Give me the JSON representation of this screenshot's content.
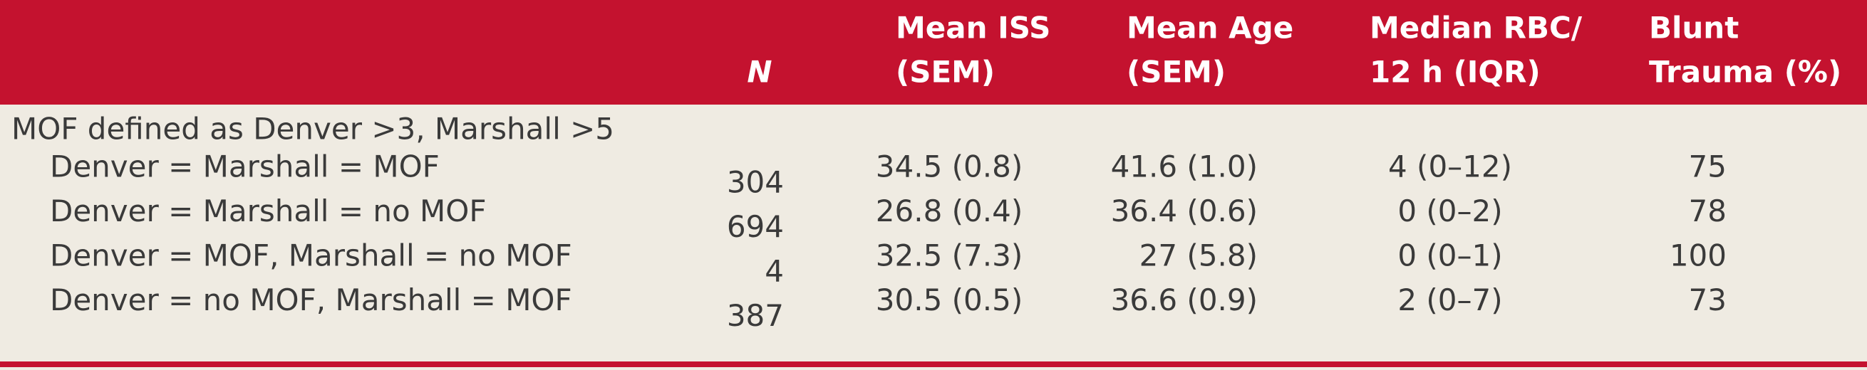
{
  "table": {
    "columns": [
      {
        "lines": [
          "N"
        ]
      },
      {
        "lines": [
          "Mean ISS",
          "(SEM)"
        ]
      },
      {
        "lines": [
          "Mean Age",
          "(SEM)"
        ]
      },
      {
        "lines": [
          "Median RBC/",
          "12 h (IQR)"
        ]
      },
      {
        "lines": [
          "Blunt",
          "Trauma (%)"
        ]
      }
    ],
    "section": "MOF defined as Denver >3, Marshall >5",
    "rows": [
      {
        "label": "Denver = Marshall = MOF",
        "cells": [
          304,
          "34.5 (0.8)",
          "41.6 (1.0)",
          "4 (0–12)",
          75
        ]
      },
      {
        "label": "Denver = Marshall = no MOF",
        "cells": [
          694,
          "26.8 (0.4)",
          "36.4 (0.6)",
          "0 (0–2)",
          78
        ]
      },
      {
        "label": "Denver = MOF, Marshall = no MOF",
        "cells": [
          4,
          "32.5 (7.3)",
          "27 (5.8)",
          "0 (0–1)",
          100
        ]
      },
      {
        "label": "Denver = no MOF, Marshall = MOF",
        "cells": [
          387,
          "30.5 (0.5)",
          "36.6 (0.9)",
          "2 (0–7)",
          73
        ]
      }
    ]
  }
}
